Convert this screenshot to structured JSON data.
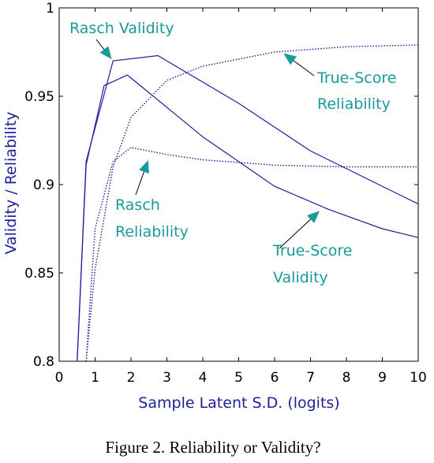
{
  "chart_data": {
    "type": "line",
    "xlabel": "Sample Latent S.D. (logits)",
    "ylabel": "Validity  /  Reliability",
    "xlim": [
      0,
      10
    ],
    "ylim": [
      0.8,
      1
    ],
    "x_ticks": [
      "0",
      "1",
      "2",
      "3",
      "4",
      "5",
      "6",
      "7",
      "8",
      "9",
      "10"
    ],
    "y_ticks": [
      {
        "value": 0.8,
        "label": "0.8"
      },
      {
        "value": 0.85,
        "label": "0.85"
      },
      {
        "value": 0.9,
        "label": "0.9"
      },
      {
        "value": 0.95,
        "label": "0.95"
      },
      {
        "value": 1.0,
        "label": "1"
      }
    ],
    "grid": false,
    "colors": {
      "solid": "#1f1f9a",
      "dotted": "#1f1f9a",
      "axes": "#000000",
      "annotation": "#1a9a9a",
      "axis_title": "#1f1f9a"
    },
    "series": [
      {
        "style": "solid",
        "points": [
          [
            0.5,
            0.8
          ],
          [
            0.75,
            0.913
          ],
          [
            1.5,
            0.97
          ],
          [
            2.75,
            0.973
          ],
          [
            5,
            0.946
          ],
          [
            7,
            0.919
          ],
          [
            8.5,
            0.904
          ],
          [
            10,
            0.889
          ]
        ]
      },
      {
        "style": "solid",
        "points": [
          [
            0.5,
            0.8
          ],
          [
            0.75,
            0.911
          ],
          [
            1.25,
            0.956
          ],
          [
            1.9,
            0.962
          ],
          [
            2.5,
            0.952
          ],
          [
            4,
            0.927
          ],
          [
            6,
            0.899
          ],
          [
            7.5,
            0.886
          ],
          [
            9,
            0.875
          ],
          [
            10,
            0.87
          ]
        ]
      },
      {
        "style": "dotted",
        "points": [
          [
            0.75,
            0.8
          ],
          [
            1,
            0.875
          ],
          [
            1.5,
            0.913
          ],
          [
            2,
            0.921
          ],
          [
            3,
            0.917
          ],
          [
            4,
            0.914
          ],
          [
            6,
            0.911
          ],
          [
            8,
            0.91
          ],
          [
            10,
            0.91
          ]
        ]
      },
      {
        "style": "dotted",
        "points": [
          [
            0.75,
            0.8
          ],
          [
            1,
            0.852
          ],
          [
            1.5,
            0.91
          ],
          [
            2,
            0.938
          ],
          [
            3,
            0.959
          ],
          [
            4,
            0.967
          ],
          [
            6,
            0.975
          ],
          [
            8,
            0.978
          ],
          [
            10,
            0.979
          ]
        ]
      }
    ],
    "annotations": [
      {
        "lines": [
          "Rasch  Validity"
        ],
        "points_to": [
          1.5,
          0.97
        ]
      },
      {
        "lines": [
          "True-Score",
          "Reliability"
        ],
        "points_to": [
          6.2,
          0.975
        ]
      },
      {
        "lines": [
          "Rasch",
          "Reliability"
        ],
        "points_to": [
          2.5,
          0.915
        ]
      },
      {
        "lines": [
          "True-Score",
          "Validity"
        ],
        "points_to": [
          7.3,
          0.886
        ]
      }
    ]
  },
  "caption": "Figure 2.  Reliability or Validity?"
}
